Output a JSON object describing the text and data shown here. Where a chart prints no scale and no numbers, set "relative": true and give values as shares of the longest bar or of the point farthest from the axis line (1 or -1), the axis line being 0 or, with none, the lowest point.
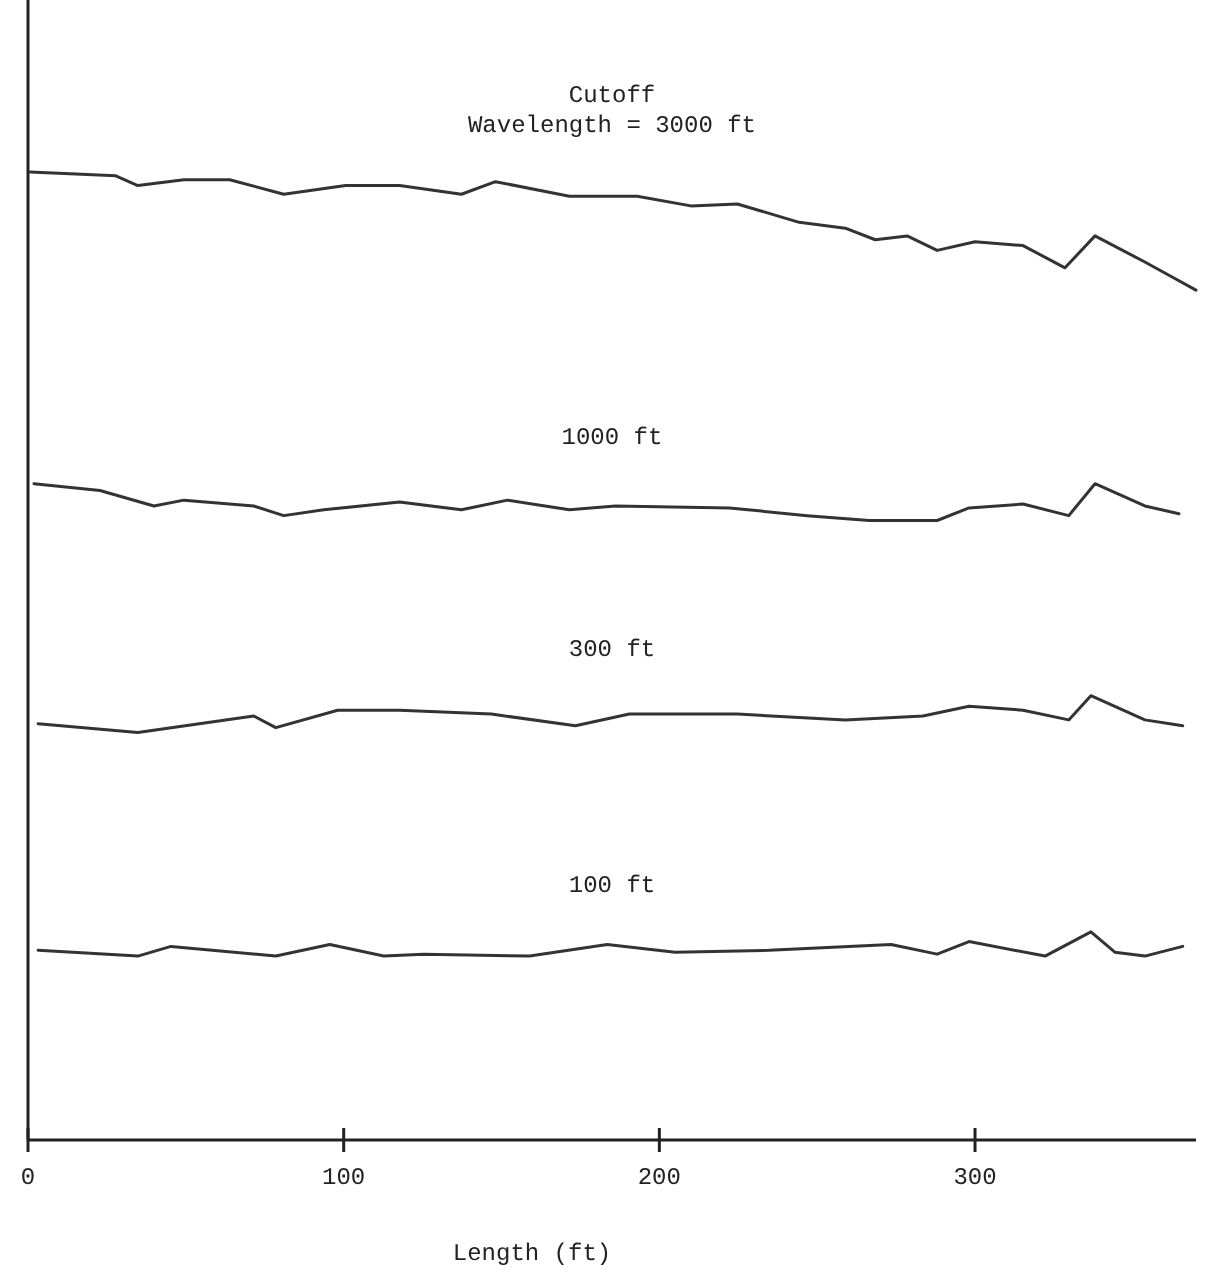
{
  "chart_data": {
    "type": "line",
    "relative": true,
    "xlabel": "Length (ft)",
    "xlim": [
      0,
      370
    ],
    "xticks": [
      0,
      100,
      200,
      300
    ],
    "grid": false,
    "marker": "none",
    "line_style": "solid",
    "series": [
      {
        "name": "Cutoff\nWavelength = 3000 ft",
        "color": "#333333",
        "x": [
          0.6,
          27.8,
          34.8,
          49.4,
          63.9,
          81,
          100.6,
          117.7,
          137.3,
          148.1,
          171.5,
          193,
          210,
          224.7,
          244.3,
          258.9,
          268.4,
          278.5,
          288,
          300,
          315.2,
          328.5,
          338,
          353.8,
          363.3,
          370
        ],
        "values": [
          1.0,
          0.996,
          0.986,
          0.992,
          0.992,
          0.977,
          0.986,
          0.986,
          0.977,
          0.99,
          0.975,
          0.975,
          0.965,
          0.967,
          0.948,
          0.942,
          0.93,
          0.934,
          0.919,
          0.928,
          0.924,
          0.901,
          0.934,
          0.907,
          0.89,
          0.878
        ]
      },
      {
        "name": "1000 ft",
        "color": "#333333",
        "x": [
          1.9,
          22.8,
          39.9,
          49.4,
          71.5,
          81,
          93.7,
          117.7,
          137.3,
          151.9,
          171.5,
          186.1,
          222.2,
          246.8,
          266.5,
          288,
          298.1,
          315.2,
          329.7,
          338,
          353.8,
          364.6
        ],
        "values": [
          0.678,
          0.671,
          0.655,
          0.661,
          0.655,
          0.645,
          0.651,
          0.659,
          0.651,
          0.661,
          0.651,
          0.655,
          0.653,
          0.645,
          0.64,
          0.64,
          0.653,
          0.657,
          0.645,
          0.678,
          0.655,
          0.647
        ]
      },
      {
        "name": "300 ft",
        "color": "#333333",
        "x": [
          3.2,
          34.8,
          71.5,
          78.5,
          98.1,
          117.7,
          146.8,
          173.4,
          190.5,
          224.7,
          258.9,
          283.5,
          298.1,
          315.2,
          329.7,
          336.7,
          353.8,
          365.8
        ],
        "values": [
          0.43,
          0.421,
          0.438,
          0.426,
          0.444,
          0.444,
          0.44,
          0.428,
          0.44,
          0.44,
          0.434,
          0.438,
          0.448,
          0.444,
          0.434,
          0.459,
          0.434,
          0.428
        ]
      },
      {
        "name": "100 ft",
        "color": "#333333",
        "x": [
          3.2,
          34.8,
          45.3,
          78.5,
          95.6,
          112.7,
          125.3,
          158.9,
          183.5,
          205,
          234.8,
          273.4,
          288,
          298.1,
          322.2,
          336.7,
          344.3,
          353.8,
          365.8
        ],
        "values": [
          0.196,
          0.19,
          0.2,
          0.19,
          0.202,
          0.19,
          0.192,
          0.19,
          0.202,
          0.194,
          0.196,
          0.202,
          0.192,
          0.205,
          0.19,
          0.215,
          0.194,
          0.19,
          0.2
        ]
      }
    ]
  }
}
